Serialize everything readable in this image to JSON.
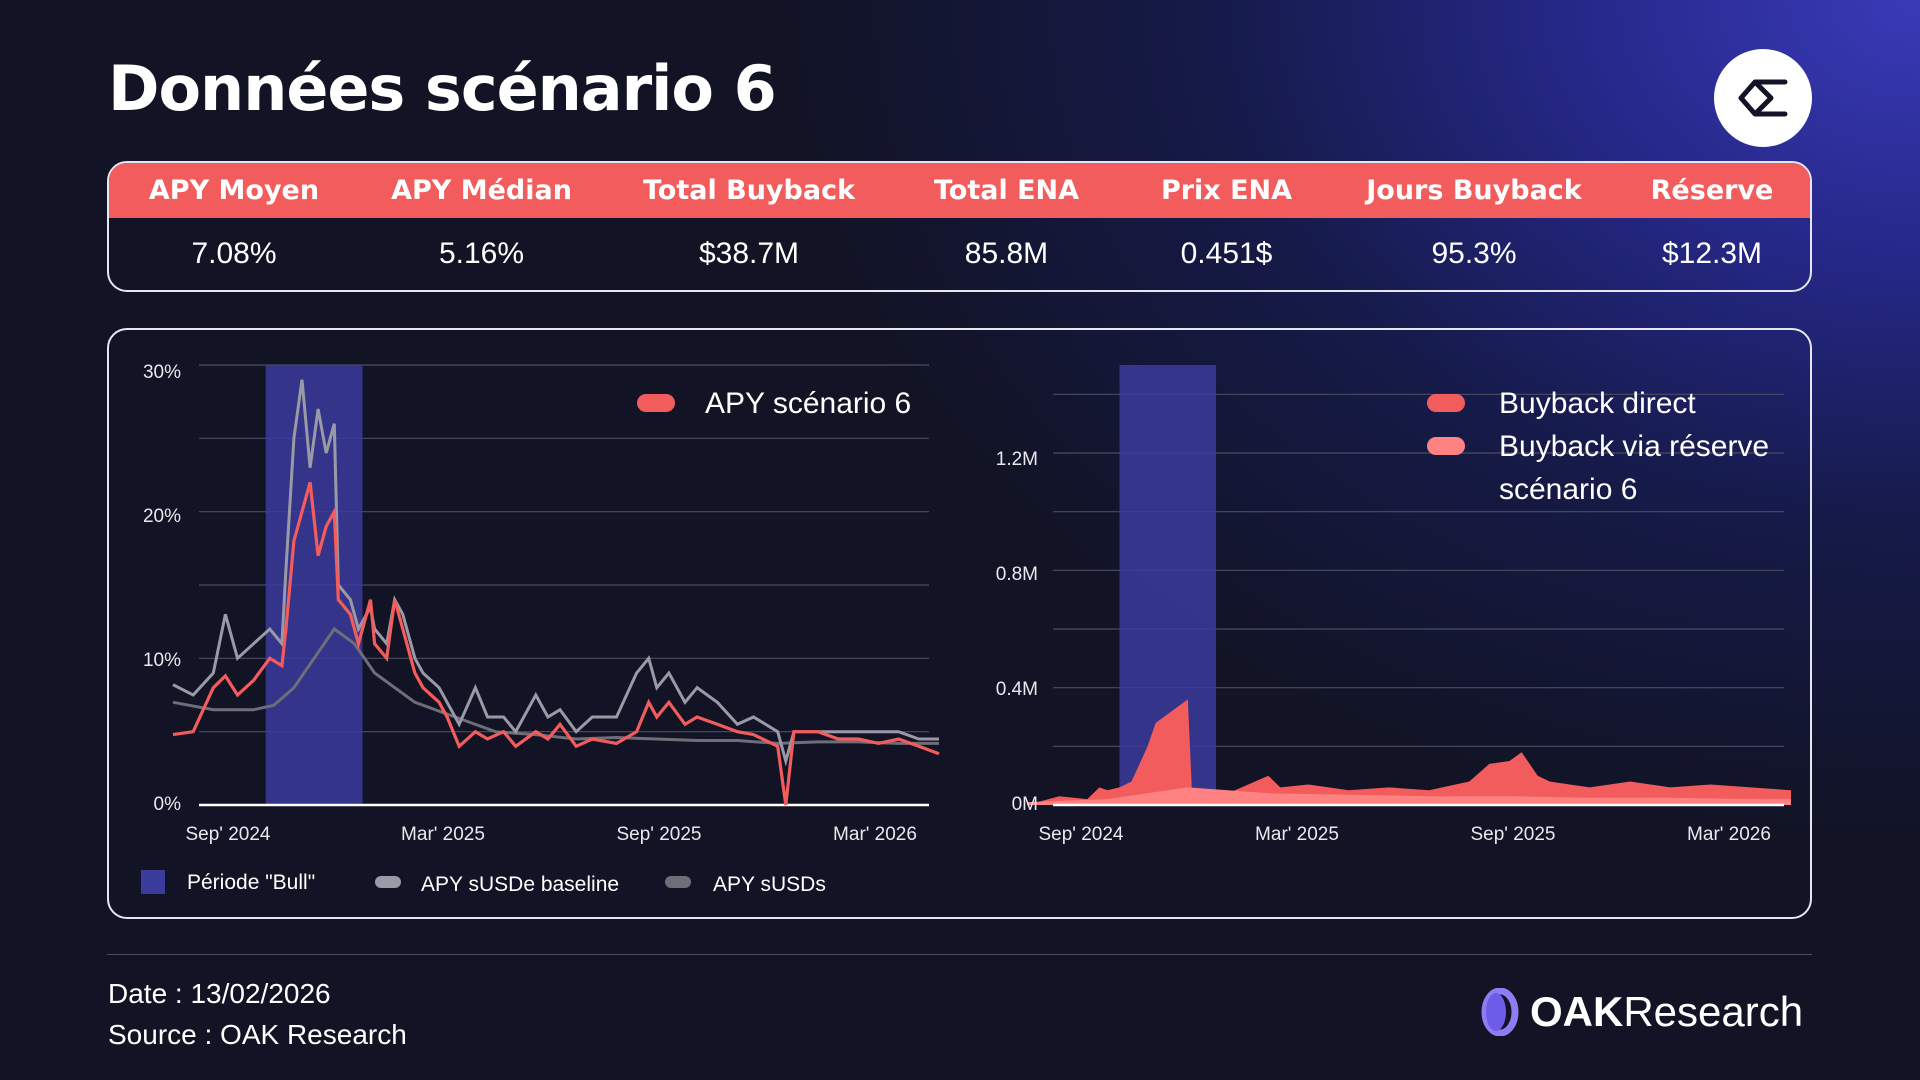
{
  "title": "Données scénario 6",
  "stats": {
    "headers": [
      "APY Moyen",
      "APY Médian",
      "Total Buyback",
      "Total ENA",
      "Prix ENA",
      "Jours Buyback",
      "Réserve"
    ],
    "values": [
      "7.08%",
      "5.16%",
      "$38.7M",
      "85.8M",
      "0.451$",
      "95.3%",
      "$12.3M"
    ]
  },
  "colors": {
    "accent": "#f25c5c",
    "reserve": "#ff8282",
    "bull": "#3b3b9c",
    "grey_series": "#9a9aa6",
    "background": "#121324"
  },
  "footer": {
    "date": "Date : 13/02/2026",
    "source": "Source : OAK Research",
    "brand_bold": "OAK",
    "brand_rest": "Research"
  },
  "chart_data": [
    {
      "type": "line",
      "title": "",
      "xlabel": "",
      "ylabel": "",
      "x_range": [
        "2024-09-01",
        "2026-04-01"
      ],
      "x_ticks": [
        "Sep' 2024",
        "Mar' 2025",
        "Sep' 2025",
        "Mar' 2026"
      ],
      "ylim": [
        0,
        30
      ],
      "y_ticks": [
        0,
        10,
        20,
        30
      ],
      "y_tick_labels": [
        "0%",
        "10%",
        "20%",
        "30%"
      ],
      "grid": true,
      "shaded_period": {
        "label": "Période \"Bull\"",
        "start_month": 2.3,
        "end_month": 4.7
      },
      "legend_in_plot": [
        "APY scénario 6"
      ],
      "legend_below": [
        "Période \"Bull\"",
        "APY sUSDe baseline",
        "APY sUSDs"
      ],
      "series": [
        {
          "name": "APY scénario 6",
          "color": "#f25c5c",
          "points": [
            [
              0,
              4.8
            ],
            [
              0.5,
              5
            ],
            [
              1,
              8
            ],
            [
              1.3,
              8.8
            ],
            [
              1.6,
              7.5
            ],
            [
              2,
              8.5
            ],
            [
              2.4,
              10
            ],
            [
              2.7,
              9.5
            ],
            [
              2.8,
              12
            ],
            [
              3,
              18
            ],
            [
              3.2,
              20
            ],
            [
              3.4,
              22
            ],
            [
              3.6,
              17
            ],
            [
              3.8,
              19
            ],
            [
              4,
              20
            ],
            [
              4.1,
              14
            ],
            [
              4.4,
              13
            ],
            [
              4.6,
              11
            ],
            [
              4.9,
              14
            ],
            [
              5,
              11
            ],
            [
              5.3,
              10
            ],
            [
              5.5,
              14
            ],
            [
              5.7,
              12
            ],
            [
              6,
              9
            ],
            [
              6.2,
              8
            ],
            [
              6.6,
              7
            ],
            [
              6.8,
              6
            ],
            [
              7.1,
              4
            ],
            [
              7.5,
              5
            ],
            [
              7.8,
              4.5
            ],
            [
              8.2,
              5
            ],
            [
              8.5,
              4
            ],
            [
              9,
              5
            ],
            [
              9.3,
              4.5
            ],
            [
              9.6,
              5.5
            ],
            [
              10,
              4
            ],
            [
              10.4,
              4.5
            ],
            [
              11,
              4.2
            ],
            [
              11.5,
              5
            ],
            [
              11.8,
              7
            ],
            [
              12,
              6
            ],
            [
              12.3,
              7
            ],
            [
              12.7,
              5.5
            ],
            [
              13,
              6
            ],
            [
              13.5,
              5.5
            ],
            [
              14,
              5
            ],
            [
              14.4,
              4.8
            ],
            [
              15,
              4
            ],
            [
              15.2,
              0
            ],
            [
              15.4,
              5
            ],
            [
              16,
              5
            ],
            [
              16.5,
              4.5
            ],
            [
              17,
              4.5
            ],
            [
              17.5,
              4.2
            ],
            [
              18,
              4.5
            ],
            [
              18.5,
              4
            ],
            [
              19,
              3.5
            ]
          ]
        },
        {
          "name": "APY sUSDe baseline",
          "color": "#9a9aa6",
          "points": [
            [
              0,
              8.2
            ],
            [
              0.5,
              7.5
            ],
            [
              1,
              9
            ],
            [
              1.3,
              13
            ],
            [
              1.6,
              10
            ],
            [
              2,
              11
            ],
            [
              2.4,
              12
            ],
            [
              2.7,
              11
            ],
            [
              2.8,
              16
            ],
            [
              3,
              25
            ],
            [
              3.2,
              29
            ],
            [
              3.4,
              23
            ],
            [
              3.6,
              27
            ],
            [
              3.8,
              24
            ],
            [
              4,
              26
            ],
            [
              4.1,
              15
            ],
            [
              4.4,
              14
            ],
            [
              4.6,
              12
            ],
            [
              4.9,
              13.5
            ],
            [
              5,
              12
            ],
            [
              5.3,
              11
            ],
            [
              5.5,
              14
            ],
            [
              5.7,
              13
            ],
            [
              6,
              10
            ],
            [
              6.2,
              9
            ],
            [
              6.6,
              8
            ],
            [
              6.8,
              7
            ],
            [
              7.1,
              5.5
            ],
            [
              7.5,
              8
            ],
            [
              7.8,
              6
            ],
            [
              8.2,
              6
            ],
            [
              8.5,
              5
            ],
            [
              9,
              7.5
            ],
            [
              9.3,
              6
            ],
            [
              9.6,
              6.5
            ],
            [
              10,
              5
            ],
            [
              10.4,
              6
            ],
            [
              11,
              6
            ],
            [
              11.5,
              9
            ],
            [
              11.8,
              10
            ],
            [
              12,
              8
            ],
            [
              12.3,
              9
            ],
            [
              12.7,
              7
            ],
            [
              13,
              8
            ],
            [
              13.5,
              7
            ],
            [
              14,
              5.5
            ],
            [
              14.4,
              6
            ],
            [
              15,
              5
            ],
            [
              15.2,
              3
            ],
            [
              15.4,
              5
            ],
            [
              16,
              5
            ],
            [
              16.5,
              5
            ],
            [
              17,
              5
            ],
            [
              17.5,
              5
            ],
            [
              18,
              5
            ],
            [
              18.5,
              4.5
            ],
            [
              19,
              4.5
            ]
          ]
        },
        {
          "name": "APY sUSDs",
          "color": "#6e6e78",
          "points": [
            [
              0,
              7
            ],
            [
              1,
              6.5
            ],
            [
              2,
              6.5
            ],
            [
              2.5,
              6.8
            ],
            [
              3,
              8
            ],
            [
              3.5,
              10
            ],
            [
              4,
              12
            ],
            [
              4.5,
              11
            ],
            [
              5,
              9
            ],
            [
              6,
              7
            ],
            [
              7,
              6
            ],
            [
              8,
              5
            ],
            [
              9,
              4.8
            ],
            [
              10,
              4.5
            ],
            [
              11,
              4.6
            ],
            [
              12,
              4.5
            ],
            [
              13,
              4.4
            ],
            [
              14,
              4.4
            ],
            [
              15,
              4.2
            ],
            [
              16,
              4.3
            ],
            [
              17,
              4.3
            ],
            [
              18,
              4.2
            ],
            [
              19,
              4.2
            ]
          ]
        }
      ]
    },
    {
      "type": "area",
      "title": "",
      "xlabel": "",
      "ylabel": "",
      "x_range": [
        "2024-09-01",
        "2026-04-01"
      ],
      "x_ticks": [
        "Sep' 2024",
        "Mar' 2025",
        "Sep' 2025",
        "Mar' 2026"
      ],
      "ylim": [
        0,
        1.5
      ],
      "y_ticks": [
        0,
        0.4,
        0.8,
        1.2
      ],
      "y_tick_labels": [
        "0M",
        "0.4M",
        "0.8M",
        "1.2M"
      ],
      "grid": true,
      "shaded_period": {
        "label": "Période \"Bull\"",
        "start_month": 2.3,
        "end_month": 4.7
      },
      "legend_in_plot": [
        "Buyback direct",
        "Buyback via réserve",
        "scénario 6"
      ],
      "series": [
        {
          "name": "Buyback direct",
          "color": "#f25c5c",
          "points": [
            [
              0,
              0
            ],
            [
              0.8,
              0.03
            ],
            [
              1.5,
              0.02
            ],
            [
              1.8,
              0.06
            ],
            [
              2,
              0.05
            ],
            [
              2.3,
              0.06
            ],
            [
              2.6,
              0.08
            ],
            [
              2.8,
              0.14
            ],
            [
              3,
              0.2
            ],
            [
              3.2,
              0.28
            ],
            [
              3.4,
              0.3
            ],
            [
              3.6,
              0.32
            ],
            [
              3.8,
              0.34
            ],
            [
              4,
              0.36
            ],
            [
              4.1,
              0.05
            ],
            [
              5,
              0.04
            ],
            [
              6,
              0.1
            ],
            [
              6.3,
              0.06
            ],
            [
              7,
              0.07
            ],
            [
              8,
              0.05
            ],
            [
              9,
              0.06
            ],
            [
              10,
              0.05
            ],
            [
              11,
              0.08
            ],
            [
              11.5,
              0.14
            ],
            [
              12,
              0.15
            ],
            [
              12.3,
              0.18
            ],
            [
              12.7,
              0.1
            ],
            [
              13,
              0.08
            ],
            [
              13.5,
              0.07
            ],
            [
              14,
              0.06
            ],
            [
              15,
              0.08
            ],
            [
              16,
              0.06
            ],
            [
              17,
              0.07
            ],
            [
              18,
              0.06
            ],
            [
              19,
              0.05
            ]
          ]
        },
        {
          "name": "Buyback via réserve",
          "color": "#ff8282",
          "points": [
            [
              0,
              0.01
            ],
            [
              2,
              0.02
            ],
            [
              4,
              0.06
            ],
            [
              5,
              0.05
            ],
            [
              6,
              0.04
            ],
            [
              8,
              0.035
            ],
            [
              10,
              0.03
            ],
            [
              12,
              0.03
            ],
            [
              14,
              0.025
            ],
            [
              16,
              0.025
            ],
            [
              18,
              0.02
            ],
            [
              19,
              0.02
            ]
          ]
        }
      ]
    }
  ]
}
